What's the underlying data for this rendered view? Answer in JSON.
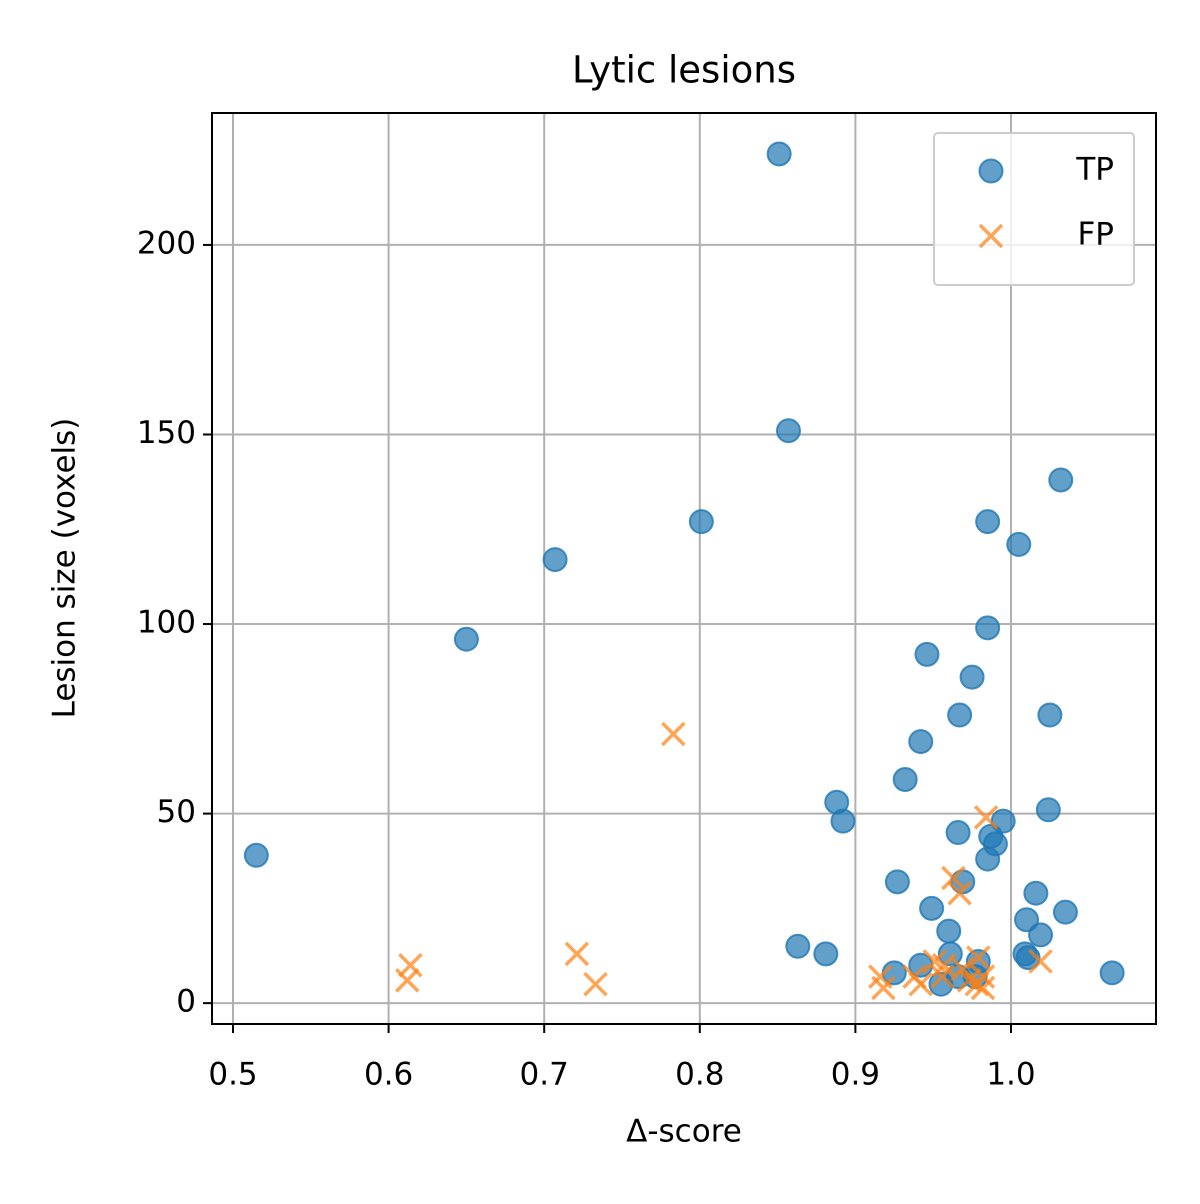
{
  "chart_data": {
    "type": "scatter",
    "title": "Lytic lesions",
    "x_label": "Δ-score",
    "y_label": "Lesion size (voxels)",
    "xlim": [
      0.4865,
      1.0932
    ],
    "ylim": [
      -5.5,
      234.8
    ],
    "xticks": [
      0.5,
      0.6,
      0.7,
      0.8,
      0.9,
      {
        "value": 1.0,
        "label": "1.0"
      }
    ],
    "yticks": [
      0,
      50,
      100,
      150,
      200
    ],
    "grid": true,
    "legend": "upper right",
    "series": [
      {
        "name": "TP",
        "color": "#1f77b4",
        "marker": "circle",
        "x": [
          0.851,
          0.857,
          1.032,
          0.985,
          0.801,
          1.005,
          0.707,
          0.65,
          0.985,
          0.946,
          0.975,
          0.967,
          1.025,
          0.942,
          0.932,
          0.888,
          0.892,
          1.024,
          0.995,
          0.966,
          0.987,
          0.99,
          0.985,
          0.515,
          0.969,
          0.927,
          1.016,
          0.949,
          1.035,
          1.01,
          1.019,
          0.96,
          0.863,
          0.881,
          0.961,
          1.009,
          1.011,
          0.925,
          0.942,
          0.955,
          0.979,
          0.977,
          1.065,
          0.966
        ],
        "values": [
          224,
          151,
          138,
          127,
          127,
          121,
          117,
          96,
          99,
          92,
          86,
          76,
          76,
          69,
          59,
          53,
          48,
          51,
          48,
          45,
          44,
          42,
          38,
          39,
          32,
          32,
          29,
          25,
          24,
          22,
          18,
          19,
          15,
          13,
          13,
          13,
          12,
          8,
          10,
          5,
          11,
          7,
          8,
          7
        ]
      },
      {
        "name": "FP",
        "color": "#ff7f0e",
        "marker": "x",
        "x": [
          0.783,
          0.984,
          0.963,
          0.967,
          0.721,
          0.733,
          0.614,
          0.612,
          1.019,
          0.979,
          0.951,
          0.957,
          0.916,
          0.918,
          0.938,
          0.942,
          0.956,
          0.969,
          0.973,
          0.978,
          0.982,
          0.982
        ],
        "values": [
          71,
          49,
          33,
          29,
          13,
          5,
          10,
          6,
          11,
          12,
          11,
          10,
          7,
          4,
          7,
          5,
          7,
          9,
          6,
          5,
          7,
          4
        ]
      }
    ]
  }
}
